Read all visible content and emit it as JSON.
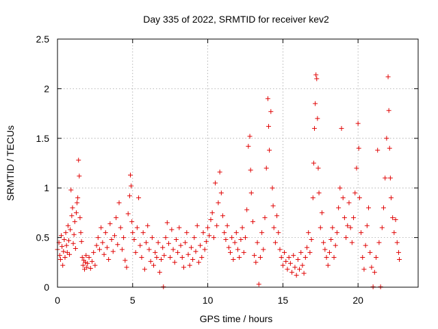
{
  "chart_data": {
    "type": "scatter",
    "title": "Day 335 of 2022, SRMTID for receiver kev2",
    "xlabel": "GPS time / hours",
    "ylabel": "SRMTID / TECUs",
    "xlim": [
      0,
      24
    ],
    "ylim": [
      0,
      2.5
    ],
    "x_ticks": [
      0,
      5,
      10,
      15,
      20
    ],
    "x_tick_labels": [
      "0",
      "5",
      "10",
      "15",
      "20"
    ],
    "y_ticks": [
      0,
      0.5,
      1,
      1.5,
      2,
      2.5
    ],
    "y_tick_labels": [
      "0",
      "0.5",
      "1",
      "1.5",
      "2",
      "2.5"
    ],
    "grid": true,
    "marker": "+",
    "marker_color": "#e00000",
    "series": [
      {
        "name": "SRMTID",
        "note": "approximate representative sample of the dense scatter read from the plot",
        "points": [
          [
            0.0,
            0.38
          ],
          [
            0.1,
            0.45
          ],
          [
            0.15,
            0.32
          ],
          [
            0.2,
            0.28
          ],
          [
            0.25,
            0.52
          ],
          [
            0.3,
            0.41
          ],
          [
            0.35,
            0.22
          ],
          [
            0.4,
            0.36
          ],
          [
            0.45,
            0.48
          ],
          [
            0.5,
            0.3
          ],
          [
            0.55,
            0.55
          ],
          [
            0.6,
            0.42
          ],
          [
            0.65,
            0.35
          ],
          [
            0.7,
            0.62
          ],
          [
            0.75,
            0.47
          ],
          [
            0.8,
            0.33
          ],
          [
            0.85,
            0.58
          ],
          [
            0.9,
            0.98
          ],
          [
            0.95,
            0.72
          ],
          [
            1.0,
            0.8
          ],
          [
            1.05,
            0.44
          ],
          [
            1.1,
            0.53
          ],
          [
            1.15,
            0.66
          ],
          [
            1.2,
            0.39
          ],
          [
            1.25,
            0.75
          ],
          [
            1.3,
            0.85
          ],
          [
            1.35,
            0.9
          ],
          [
            1.4,
            1.28
          ],
          [
            1.45,
            1.12
          ],
          [
            1.5,
            0.7
          ],
          [
            1.55,
            0.55
          ],
          [
            1.6,
            0.46
          ],
          [
            1.65,
            0.3
          ],
          [
            1.7,
            0.22
          ],
          [
            1.75,
            0.27
          ],
          [
            1.8,
            0.18
          ],
          [
            1.85,
            0.25
          ],
          [
            1.9,
            0.32
          ],
          [
            1.95,
            0.2
          ],
          [
            2.0,
            0.24
          ],
          [
            2.1,
            0.3
          ],
          [
            2.2,
            0.19
          ],
          [
            2.3,
            0.26
          ],
          [
            2.4,
            0.35
          ],
          [
            2.5,
            0.22
          ],
          [
            2.6,
            0.42
          ],
          [
            2.7,
            0.5
          ],
          [
            2.8,
            0.38
          ],
          [
            2.9,
            0.6
          ],
          [
            3.0,
            0.45
          ],
          [
            3.1,
            0.33
          ],
          [
            3.2,
            0.55
          ],
          [
            3.3,
            0.4
          ],
          [
            3.4,
            0.28
          ],
          [
            3.5,
            0.64
          ],
          [
            3.6,
            0.48
          ],
          [
            3.7,
            0.36
          ],
          [
            3.8,
            0.52
          ],
          [
            3.9,
            0.7
          ],
          [
            4.0,
            0.43
          ],
          [
            4.1,
            0.85
          ],
          [
            4.2,
            0.6
          ],
          [
            4.3,
            0.38
          ],
          [
            4.4,
            0.5
          ],
          [
            4.5,
            0.27
          ],
          [
            4.6,
            0.2
          ],
          [
            4.7,
            0.74
          ],
          [
            4.8,
            0.92
          ],
          [
            4.85,
            1.13
          ],
          [
            4.9,
            1.02
          ],
          [
            4.95,
            0.66
          ],
          [
            5.0,
            0.55
          ],
          [
            5.1,
            0.48
          ],
          [
            5.2,
            0.35
          ],
          [
            5.3,
            0.6
          ],
          [
            5.4,
            0.9
          ],
          [
            5.5,
            0.42
          ],
          [
            5.6,
            0.3
          ],
          [
            5.7,
            0.55
          ],
          [
            5.8,
            0.18
          ],
          [
            5.9,
            0.45
          ],
          [
            6.0,
            0.62
          ],
          [
            6.1,
            0.38
          ],
          [
            6.2,
            0.26
          ],
          [
            6.3,
            0.5
          ],
          [
            6.4,
            0.22
          ],
          [
            6.5,
            0.35
          ],
          [
            6.6,
            0.3
          ],
          [
            6.7,
            0.45
          ],
          [
            6.8,
            0.15
          ],
          [
            6.9,
            0.28
          ],
          [
            7.0,
            0.4
          ],
          [
            7.05,
            0.0
          ],
          [
            7.1,
            0.32
          ],
          [
            7.2,
            0.5
          ],
          [
            7.3,
            0.65
          ],
          [
            7.4,
            0.44
          ],
          [
            7.5,
            0.3
          ],
          [
            7.6,
            0.58
          ],
          [
            7.7,
            0.38
          ],
          [
            7.8,
            0.25
          ],
          [
            7.9,
            0.48
          ],
          [
            8.0,
            0.35
          ],
          [
            8.1,
            0.6
          ],
          [
            8.2,
            0.42
          ],
          [
            8.3,
            0.3
          ],
          [
            8.4,
            0.2
          ],
          [
            8.5,
            0.45
          ],
          [
            8.6,
            0.55
          ],
          [
            8.7,
            0.33
          ],
          [
            8.8,
            0.22
          ],
          [
            8.9,
            0.4
          ],
          [
            9.0,
            0.28
          ],
          [
            9.1,
            0.5
          ],
          [
            9.2,
            0.36
          ],
          [
            9.3,
            0.62
          ],
          [
            9.4,
            0.25
          ],
          [
            9.5,
            0.42
          ],
          [
            9.6,
            0.3
          ],
          [
            9.7,
            0.55
          ],
          [
            9.8,
            0.38
          ],
          [
            9.9,
            0.46
          ],
          [
            10.0,
            0.6
          ],
          [
            10.1,
            0.52
          ],
          [
            10.2,
            0.68
          ],
          [
            10.3,
            0.75
          ],
          [
            10.4,
            0.5
          ],
          [
            10.5,
            1.05
          ],
          [
            10.6,
            0.62
          ],
          [
            10.7,
            0.85
          ],
          [
            10.8,
            1.16
          ],
          [
            10.9,
            0.95
          ],
          [
            11.0,
            0.72
          ],
          [
            11.1,
            0.55
          ],
          [
            11.2,
            0.48
          ],
          [
            11.3,
            0.62
          ],
          [
            11.4,
            0.4
          ],
          [
            11.5,
            0.35
          ],
          [
            11.6,
            0.5
          ],
          [
            11.7,
            0.28
          ],
          [
            11.8,
            0.45
          ],
          [
            11.9,
            0.55
          ],
          [
            12.0,
            0.38
          ],
          [
            12.1,
            0.3
          ],
          [
            12.2,
            0.48
          ],
          [
            12.3,
            0.6
          ],
          [
            12.4,
            0.35
          ],
          [
            12.5,
            0.5
          ],
          [
            12.6,
            0.78
          ],
          [
            12.7,
            1.42
          ],
          [
            12.8,
            1.52
          ],
          [
            12.85,
            1.18
          ],
          [
            12.9,
            0.95
          ],
          [
            13.0,
            0.66
          ],
          [
            13.1,
            0.32
          ],
          [
            13.2,
            0.25
          ],
          [
            13.3,
            0.45
          ],
          [
            13.4,
            0.03
          ],
          [
            13.5,
            0.3
          ],
          [
            13.6,
            0.55
          ],
          [
            13.7,
            0.38
          ],
          [
            13.8,
            0.7
          ],
          [
            13.9,
            1.2
          ],
          [
            14.0,
            1.9
          ],
          [
            14.05,
            1.62
          ],
          [
            14.1,
            1.38
          ],
          [
            14.2,
            1.77
          ],
          [
            14.3,
            1.0
          ],
          [
            14.35,
            0.82
          ],
          [
            14.4,
            0.6
          ],
          [
            14.5,
            0.45
          ],
          [
            14.6,
            0.72
          ],
          [
            14.7,
            0.55
          ],
          [
            14.8,
            0.38
          ],
          [
            14.9,
            0.3
          ],
          [
            15.0,
            0.22
          ],
          [
            15.1,
            0.35
          ],
          [
            15.2,
            0.26
          ],
          [
            15.3,
            0.18
          ],
          [
            15.4,
            0.3
          ],
          [
            15.5,
            0.24
          ],
          [
            15.6,
            0.15
          ],
          [
            15.7,
            0.32
          ],
          [
            15.8,
            0.2
          ],
          [
            15.9,
            0.12
          ],
          [
            16.0,
            0.28
          ],
          [
            16.1,
            0.18
          ],
          [
            16.2,
            0.35
          ],
          [
            16.3,
            0.22
          ],
          [
            16.4,
            0.14
          ],
          [
            16.5,
            0.3
          ],
          [
            16.6,
            0.4
          ],
          [
            16.7,
            0.55
          ],
          [
            16.8,
            0.35
          ],
          [
            16.9,
            0.48
          ],
          [
            17.0,
            0.9
          ],
          [
            17.05,
            1.25
          ],
          [
            17.1,
            1.6
          ],
          [
            17.15,
            1.85
          ],
          [
            17.2,
            2.14
          ],
          [
            17.25,
            2.1
          ],
          [
            17.3,
            1.7
          ],
          [
            17.35,
            1.2
          ],
          [
            17.4,
            0.95
          ],
          [
            17.5,
            0.6
          ],
          [
            17.6,
            0.75
          ],
          [
            17.7,
            0.45
          ],
          [
            17.8,
            0.38
          ],
          [
            17.9,
            0.3
          ],
          [
            18.0,
            0.22
          ],
          [
            18.1,
            0.35
          ],
          [
            18.2,
            0.48
          ],
          [
            18.3,
            0.6
          ],
          [
            18.4,
            0.3
          ],
          [
            18.5,
            0.42
          ],
          [
            18.6,
            0.55
          ],
          [
            18.7,
            0.8
          ],
          [
            18.8,
            1.0
          ],
          [
            18.9,
            1.6
          ],
          [
            19.0,
            0.9
          ],
          [
            19.1,
            0.7
          ],
          [
            19.2,
            0.5
          ],
          [
            19.3,
            0.62
          ],
          [
            19.4,
            0.85
          ],
          [
            19.5,
            0.6
          ],
          [
            19.6,
            0.45
          ],
          [
            19.7,
            0.7
          ],
          [
            19.8,
            0.95
          ],
          [
            19.9,
            1.2
          ],
          [
            20.0,
            1.65
          ],
          [
            20.05,
            1.4
          ],
          [
            20.1,
            0.9
          ],
          [
            20.2,
            0.55
          ],
          [
            20.3,
            0.3
          ],
          [
            20.4,
            0.18
          ],
          [
            20.5,
            0.42
          ],
          [
            20.6,
            0.62
          ],
          [
            20.7,
            0.8
          ],
          [
            20.8,
            0.35
          ],
          [
            20.9,
            0.2
          ],
          [
            21.0,
            0.0
          ],
          [
            21.1,
            0.15
          ],
          [
            21.2,
            0.3
          ],
          [
            21.3,
            1.38
          ],
          [
            21.4,
            0.45
          ],
          [
            21.5,
            0.0
          ],
          [
            21.6,
            0.6
          ],
          [
            21.7,
            0.8
          ],
          [
            21.8,
            1.1
          ],
          [
            21.9,
            1.5
          ],
          [
            22.0,
            2.12
          ],
          [
            22.05,
            1.78
          ],
          [
            22.1,
            1.4
          ],
          [
            22.15,
            1.1
          ],
          [
            22.2,
            0.9
          ],
          [
            22.3,
            0.7
          ],
          [
            22.4,
            0.55
          ],
          [
            22.5,
            0.68
          ],
          [
            22.6,
            0.45
          ],
          [
            22.7,
            0.35
          ],
          [
            22.75,
            0.28
          ]
        ]
      }
    ]
  }
}
